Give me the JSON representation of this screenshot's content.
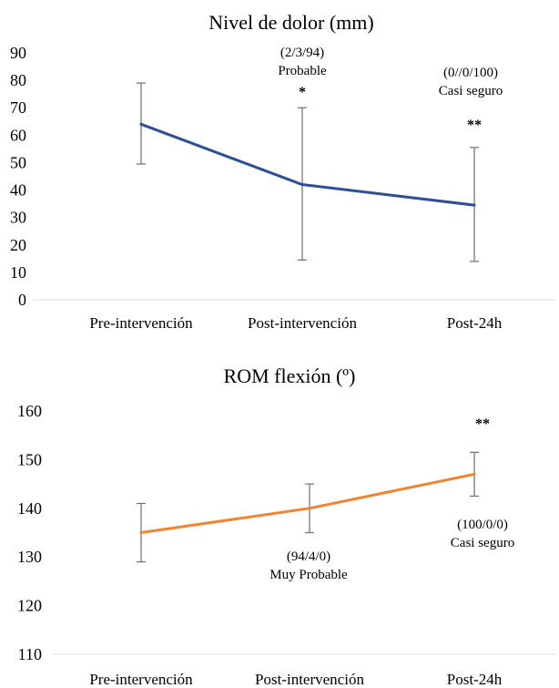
{
  "chart_data": [
    {
      "type": "line",
      "title": "Nivel de dolor (mm)",
      "categories": [
        "Pre-intervención",
        "Post-intervención",
        "Post-24h"
      ],
      "series": [
        {
          "values": [
            64,
            42,
            34.5
          ],
          "error_low": [
            49.5,
            14.5,
            14
          ],
          "error_high": [
            79,
            70,
            55.5
          ],
          "color": "#2e4f95"
        }
      ],
      "ylim": [
        0,
        90
      ],
      "yticks": [
        0,
        10,
        20,
        30,
        40,
        50,
        60,
        70,
        80,
        90
      ],
      "grid": false,
      "annotations": [
        {
          "index": 1,
          "lines": [
            "(2/3/94)",
            "Probable"
          ],
          "marker": "*"
        },
        {
          "index": 2,
          "lines": [
            "(0//0/100)",
            "Casi seguro"
          ],
          "marker": "**"
        }
      ]
    },
    {
      "type": "line",
      "title": "ROM flexión (º)",
      "categories": [
        "Pre-intervención",
        "Post-intervención",
        "Post-24h"
      ],
      "series": [
        {
          "values": [
            135,
            140,
            147
          ],
          "error_low": [
            129,
            135,
            142.5
          ],
          "error_high": [
            141,
            145,
            151.5
          ],
          "color": "#ef8433"
        }
      ],
      "ylim": [
        110,
        160
      ],
      "yticks": [
        110,
        120,
        130,
        140,
        150,
        160
      ],
      "grid": false,
      "annotations": [
        {
          "index": 1,
          "lines": [
            "(94/4/0)",
            "Muy Probable"
          ],
          "marker": ""
        },
        {
          "index": 2,
          "lines": [
            "(100/0/0)",
            "Casi seguro"
          ],
          "marker": "**"
        }
      ]
    }
  ]
}
